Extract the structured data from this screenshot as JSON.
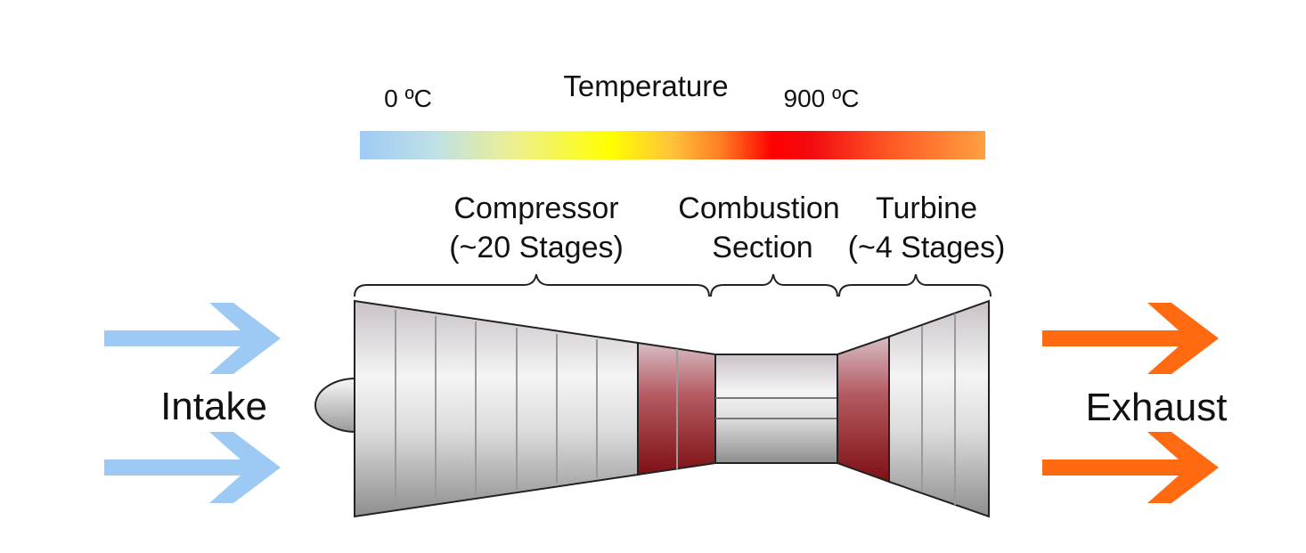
{
  "header": {
    "title": "Temperature",
    "min_label": "0 ºC",
    "max_label": "900 ºC"
  },
  "sections": [
    {
      "lines": [
        "Compressor",
        "(~20 Stages)"
      ]
    },
    {
      "lines": [
        "Combustion",
        "Section"
      ]
    },
    {
      "lines": [
        "Turbine",
        "(~4 Stages)"
      ]
    }
  ],
  "flow": {
    "intake": "Intake",
    "exhaust": "Exhaust"
  }
}
